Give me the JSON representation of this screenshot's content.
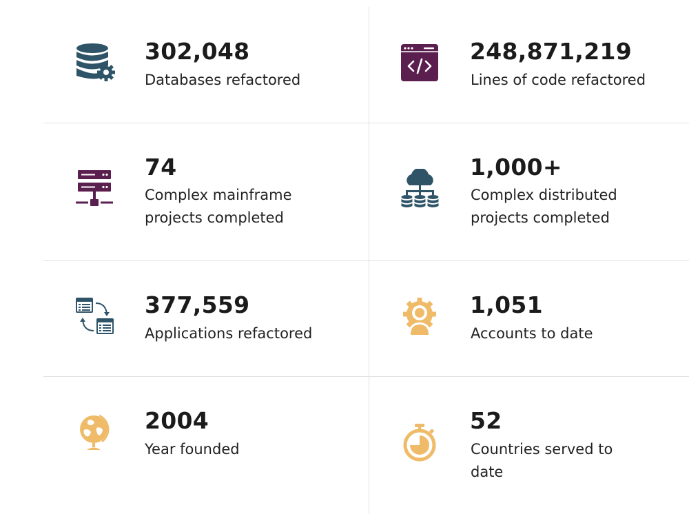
{
  "stats": [
    {
      "value": "302,048",
      "label": "Databases refactored",
      "icon": "database-gear-icon",
      "icon_color": "#2f5468"
    },
    {
      "value": "248,871,219",
      "label": "Lines of code refactored",
      "icon": "code-window-icon",
      "icon_color": "#5b1f4f"
    },
    {
      "value": "74",
      "label": "Complex mainframe projects completed",
      "icon": "server-network-icon",
      "icon_color": "#5b1f4f"
    },
    {
      "value": "1,000+",
      "label": "Complex distributed projects completed",
      "icon": "cloud-database-icon",
      "icon_color": "#2f5468"
    },
    {
      "value": "377,559",
      "label": "Applications refactored",
      "icon": "app-migration-icon",
      "icon_color": "#2f5468"
    },
    {
      "value": "1,051",
      "label": "Accounts to date",
      "icon": "user-gear-icon",
      "icon_color": "#efbb68"
    },
    {
      "value": "2004",
      "label": "Year founded",
      "icon": "globe-icon",
      "icon_color": "#efbb68"
    },
    {
      "value": "52",
      "label": "Countries served to date",
      "icon": "stopwatch-icon",
      "icon_color": "#efbb68"
    }
  ]
}
